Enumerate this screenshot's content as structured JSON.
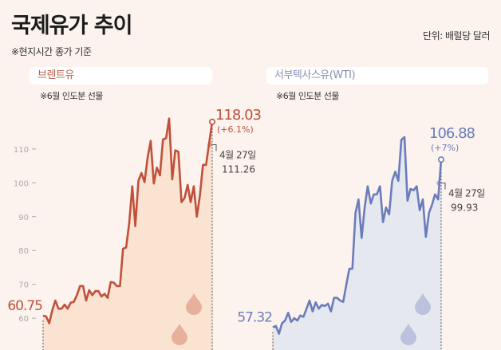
{
  "header": {
    "title": "국제유가 추이",
    "subtitle": "※현지시간 종가 기준",
    "unit": "단위: 배럴당 달러"
  },
  "chart_data": [
    {
      "type": "area",
      "title": "브렌트유",
      "note": "※6월 인도분 선물",
      "color": "#c0503a",
      "fill": "#fbe3d2",
      "yticks": [
        60,
        70,
        80,
        90,
        100,
        110
      ],
      "ylim": [
        50.6,
        123.4
      ],
      "start_label": "60.75",
      "end_label": "118.03",
      "end_change": "(+6.1%)",
      "ref_date": "4월 27일",
      "ref_value": "111.26",
      "values": [
        60.75,
        60.5,
        58.5,
        62.4,
        65.2,
        62.8,
        62.8,
        64,
        62.8,
        64.6,
        64.8,
        66.8,
        69.5,
        69.5,
        65.2,
        68.3,
        66.8,
        68,
        68,
        66.4,
        67.2,
        66,
        70.7,
        70.5,
        69.5,
        69.5,
        80.5,
        80.9,
        88,
        99,
        87.2,
        100.6,
        102.9,
        100.2,
        107.6,
        112.4,
        99.8,
        104.5,
        102.2,
        112.8,
        113.2,
        119,
        101,
        109.6,
        109.2,
        94.3,
        95.5,
        99.4,
        94.3,
        99,
        90,
        96.3,
        105.3,
        105.3,
        111.6,
        118.03
      ]
    },
    {
      "type": "area",
      "title": "서부텍사스유(WTI)",
      "note": "※6월 인도분 선물",
      "color": "#6b7cbb",
      "fill": "#e6e8f0",
      "ylim": [
        50.6,
        123.4
      ],
      "start_label": "57.32",
      "end_label": "106.88",
      "end_change": "(+7%)",
      "ref_date": "4월 27일",
      "ref_value": "99.93",
      "values": [
        57.32,
        57.7,
        55.4,
        58.5,
        59.3,
        61.6,
        58.9,
        60,
        59.3,
        60.8,
        60.4,
        62.8,
        65.2,
        62,
        64.7,
        62.8,
        63.9,
        63.6,
        64.3,
        62,
        66,
        66,
        65.2,
        64.8,
        69.9,
        74.6,
        74.6,
        91.1,
        95.1,
        83.7,
        92.7,
        99,
        93.9,
        96.6,
        96.6,
        99,
        88.4,
        92.7,
        90.7,
        100.6,
        103.3,
        100.6,
        112.7,
        113.5,
        94.7,
        98.2,
        97.8,
        99,
        91.9,
        95.1,
        84,
        91.1,
        93.5,
        96.6,
        95.1,
        106.88
      ]
    }
  ]
}
